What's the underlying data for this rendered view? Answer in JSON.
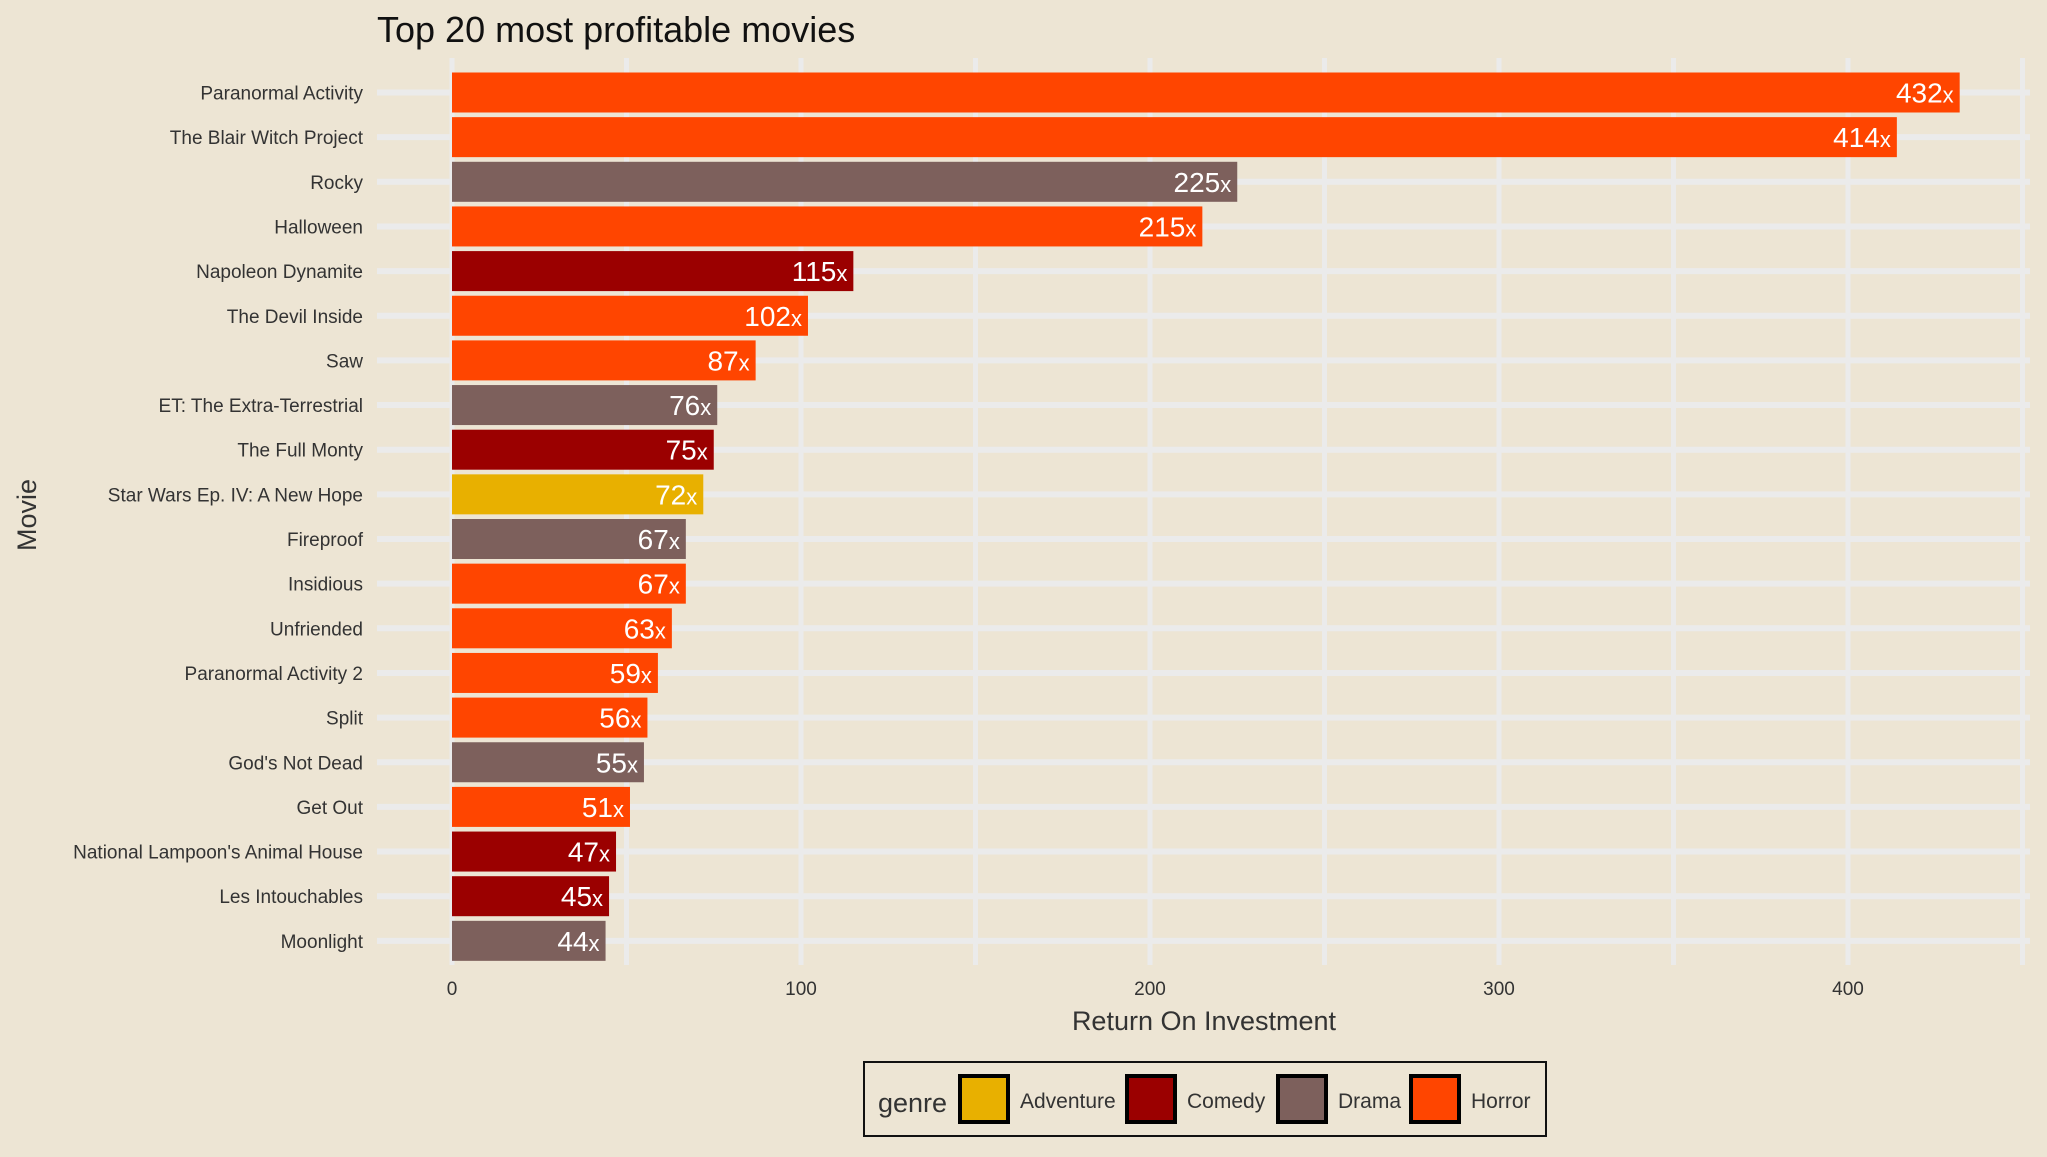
{
  "chart_data": {
    "type": "bar",
    "orientation": "horizontal",
    "title": "Top 20 most profitable movies",
    "xlabel": "Return On Investment",
    "ylabel": "Movie",
    "xlim": [
      0,
      450
    ],
    "x_ticks": [
      0,
      100,
      200,
      300,
      400
    ],
    "grid": true,
    "legend_position": "bottom",
    "legend_title": "genre",
    "genres": [
      {
        "name": "Adventure",
        "color": "#e8b000"
      },
      {
        "name": "Comedy",
        "color": "#9b0000"
      },
      {
        "name": "Drama",
        "color": "#7d605c"
      },
      {
        "name": "Horror",
        "color": "#ff4500"
      }
    ],
    "value_suffix": "x",
    "categories": [
      "Paranormal Activity",
      "The Blair Witch Project",
      "Rocky",
      "Halloween",
      "Napoleon Dynamite",
      "The Devil Inside",
      "Saw",
      "ET: The Extra-Terrestrial",
      "The Full Monty",
      "Star Wars Ep. IV: A New Hope",
      "Fireproof",
      "Insidious",
      "Unfriended",
      "Paranormal Activity 2",
      "Split",
      "God's Not Dead",
      "Get Out",
      "National Lampoon's Animal House",
      "Les Intouchables",
      "Moonlight"
    ],
    "values": [
      432,
      414,
      225,
      215,
      115,
      102,
      87,
      76,
      75,
      72,
      67,
      67,
      63,
      59,
      56,
      55,
      51,
      47,
      45,
      44
    ],
    "genre_of_bar": [
      "Horror",
      "Horror",
      "Drama",
      "Horror",
      "Comedy",
      "Horror",
      "Horror",
      "Drama",
      "Comedy",
      "Adventure",
      "Drama",
      "Horror",
      "Horror",
      "Horror",
      "Horror",
      "Drama",
      "Horror",
      "Comedy",
      "Comedy",
      "Drama"
    ]
  }
}
